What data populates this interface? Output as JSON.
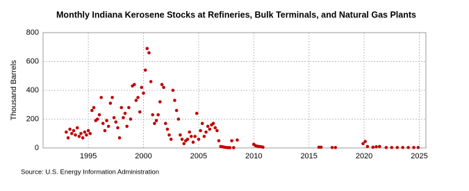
{
  "chart_data": {
    "type": "scatter",
    "title": "Monthly Indiana Kerosene Stocks at Refineries, Bulk Terminals, and Natural Gas Plants",
    "y_label": "Thousand Barrels",
    "source": "Source: U.S. Energy Information Administration",
    "color": "#c00000",
    "grid": true,
    "xlim": [
      1990.9,
      2025.6
    ],
    "xticks": [
      1995,
      2000,
      2005,
      2010,
      2015,
      2020,
      2025
    ],
    "ylim": [
      0,
      800
    ],
    "yticks": [
      0,
      200,
      400,
      600,
      800
    ],
    "x": [
      1993.0,
      1993.17,
      1993.33,
      1993.5,
      1993.67,
      1993.83,
      1994.0,
      1994.17,
      1994.33,
      1994.5,
      1994.67,
      1994.83,
      1995.0,
      1995.17,
      1995.33,
      1995.5,
      1995.67,
      1995.83,
      1996.0,
      1996.17,
      1996.33,
      1996.5,
      1996.67,
      1996.83,
      1997.0,
      1997.17,
      1997.33,
      1997.5,
      1997.67,
      1997.83,
      1998.0,
      1998.17,
      1998.33,
      1998.5,
      1998.67,
      1998.83,
      1999.0,
      1999.17,
      1999.33,
      1999.5,
      1999.67,
      1999.83,
      2000.0,
      2000.17,
      2000.33,
      2000.5,
      2000.67,
      2000.83,
      2001.0,
      2001.17,
      2001.33,
      2001.5,
      2001.67,
      2001.83,
      2002.0,
      2002.17,
      2002.33,
      2002.5,
      2002.67,
      2002.83,
      2003.0,
      2003.17,
      2003.33,
      2003.5,
      2003.67,
      2003.83,
      2004.0,
      2004.17,
      2004.33,
      2004.5,
      2004.67,
      2004.83,
      2005.0,
      2005.17,
      2005.33,
      2005.5,
      2005.67,
      2005.83,
      2006.0,
      2006.17,
      2006.33,
      2006.5,
      2006.67,
      2006.83,
      2007.0,
      2007.17,
      2007.33,
      2007.5,
      2007.67,
      2007.83,
      2008.0,
      2008.17,
      2008.5,
      2010.0,
      2010.17,
      2010.33,
      2010.5,
      2010.67,
      2010.83,
      2015.9,
      2016.1,
      2017.1,
      2017.4,
      2019.9,
      2020.1,
      2020.3,
      2020.8,
      2021.1,
      2021.4,
      2022.0,
      2022.5,
      2023.0,
      2023.5,
      2024.0,
      2024.5,
      2024.9
    ],
    "values": [
      110,
      70,
      130,
      100,
      120,
      90,
      140,
      80,
      100,
      70,
      110,
      90,
      120,
      100,
      260,
      280,
      190,
      200,
      230,
      350,
      170,
      120,
      190,
      150,
      310,
      350,
      210,
      180,
      140,
      70,
      280,
      210,
      240,
      150,
      280,
      200,
      430,
      440,
      330,
      350,
      250,
      420,
      380,
      540,
      690,
      660,
      460,
      230,
      170,
      190,
      230,
      320,
      440,
      420,
      170,
      130,
      90,
      60,
      400,
      330,
      260,
      200,
      90,
      60,
      30,
      50,
      60,
      110,
      80,
      40,
      80,
      240,
      60,
      120,
      170,
      80,
      110,
      150,
      130,
      160,
      170,
      140,
      120,
      50,
      10,
      8,
      5,
      3,
      2,
      2,
      50,
      2,
      55,
      25,
      15,
      12,
      10,
      8,
      5,
      5,
      5,
      3,
      3,
      30,
      45,
      10,
      5,
      8,
      10,
      3,
      3,
      3,
      3,
      3,
      3,
      3
    ]
  }
}
